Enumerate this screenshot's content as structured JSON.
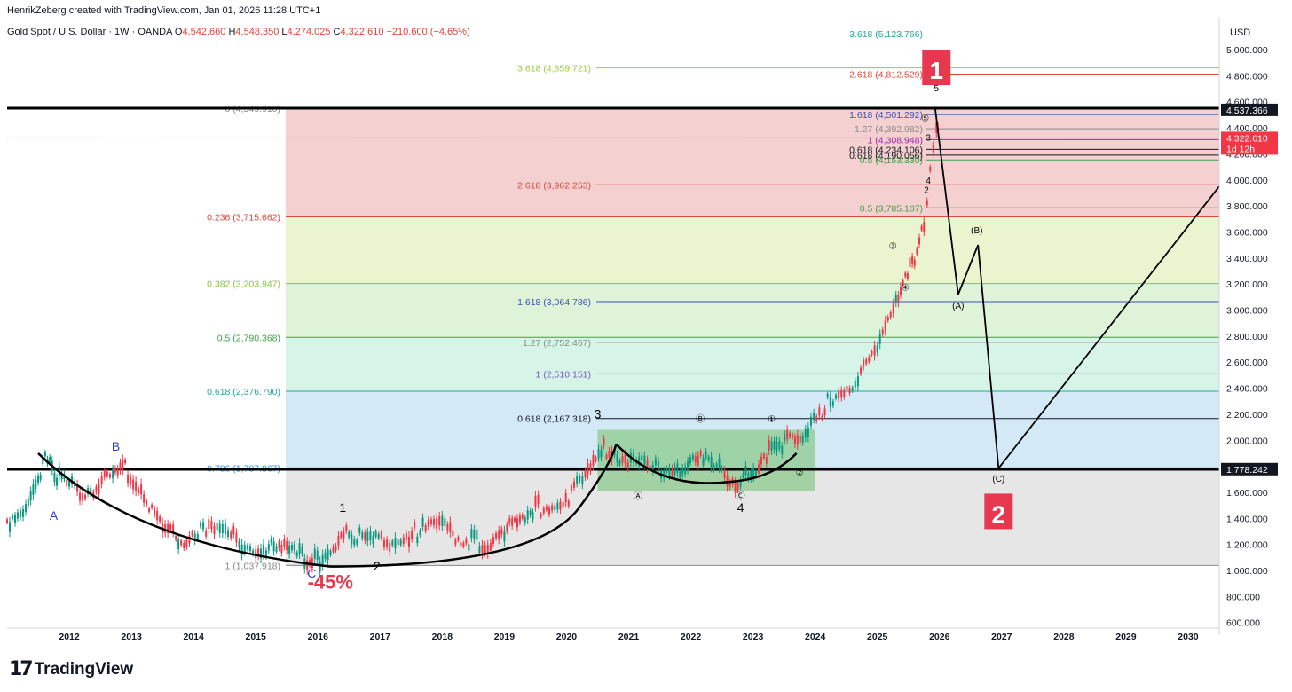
{
  "header": {
    "credit": "HenrikZeberg created with TradingView.com, Jan 01, 2026 11:28 UTC+1",
    "symbol": "Gold Spot / U.S. Dollar · 1W · OANDA",
    "o_label": "O",
    "o_value": "4,542.660",
    "h_label": "H",
    "h_value": "4,548.350",
    "l_label": "L",
    "l_value": "4,274.025",
    "c_label": "C",
    "c_value": "4,322.610",
    "change": "−210.600 (−4.65%)"
  },
  "axis": {
    "currency": "USD"
  },
  "logo": {
    "mark": "17",
    "text": "TradingView"
  },
  "chart_data": {
    "type": "line",
    "title": "",
    "xlabel": "",
    "ylabel": "USD",
    "x_ticks": [
      "2012",
      "2013",
      "2014",
      "2015",
      "2016",
      "2017",
      "2018",
      "2019",
      "2020",
      "2021",
      "2022",
      "2023",
      "2024",
      "2025",
      "2026",
      "2027",
      "2028",
      "2029",
      "2030"
    ],
    "y_ticks": [
      "600.000",
      "800.000",
      "1,000.000",
      "1,200.000",
      "1,400.000",
      "1,600.000",
      "1,800.000",
      "2,000.000",
      "2,200.000",
      "2,400.000",
      "2,600.000",
      "2,800.000",
      "3,000.000",
      "3,200.000",
      "3,400.000",
      "3,600.000",
      "3,800.000",
      "4,000.000",
      "4,200.000",
      "4,400.000",
      "4,600.000",
      "4,800.000",
      "5,000.000"
    ],
    "ylim": [
      580,
      5300
    ],
    "xlim": [
      2011.0,
      2030.5
    ],
    "series": [
      {
        "values_x": [
          2011.0,
          2011.3,
          2011.5,
          2011.65,
          2011.8,
          2012.0,
          2012.3,
          2012.7,
          2012.9,
          2013.2,
          2013.5,
          2013.8,
          2014.2,
          2014.6,
          2015.0,
          2015.5,
          2015.95,
          2016.5,
          2016.8,
          2017.2,
          2017.6,
          2018.0,
          2018.6,
          2019.0,
          2019.5,
          2019.9,
          2020.3,
          2020.6,
          2020.9,
          2021.3,
          2021.7,
          2022.2,
          2022.8,
          2023.3,
          2023.8,
          2024.2,
          2024.6,
          2025.0,
          2025.3,
          2025.45,
          2025.6,
          2025.75,
          2025.85,
          2025.95,
          2026.0
        ],
        "values_y": [
          1380,
          1500,
          1650,
          1900,
          1720,
          1650,
          1620,
          1720,
          1780,
          1600,
          1300,
          1250,
          1330,
          1250,
          1190,
          1150,
          1060,
          1300,
          1210,
          1250,
          1300,
          1330,
          1200,
          1280,
          1480,
          1520,
          1700,
          1950,
          1880,
          1780,
          1790,
          1840,
          1660,
          1960,
          1990,
          2300,
          2450,
          2650,
          3100,
          3300,
          3350,
          3700,
          4050,
          4350,
          4322.61
        ]
      }
    ],
    "fib_levels": [
      {
        "label": "0 (4,549.910)",
        "value": 4549.91
      },
      {
        "label": "0.236 (3,715.662)",
        "value": 3715.662
      },
      {
        "label": "0.382 (3,203.947)",
        "value": 3203.947
      },
      {
        "label": "0.5 (2,790.368)",
        "value": 2790.368
      },
      {
        "label": "0.618 (2,376.790)",
        "value": 2376.79
      },
      {
        "label": "0.786 (1,787.867)",
        "value": 1787.867
      },
      {
        "label": "1 (1,037.918)",
        "value": 1037.918
      }
    ],
    "extensions": [
      {
        "label": "3.618 (5,123.766)",
        "value": 5123.766
      },
      {
        "label": "3.618 (4,859.721)",
        "value": 4859.721
      },
      {
        "label": "2.618 (4,812.529)",
        "value": 4812.529
      },
      {
        "label": "1.618 (4,501.292)",
        "value": 4501.292
      },
      {
        "label": "1.27 (4,392.982)",
        "value": 4392.982
      },
      {
        "label": "1 (4,308.948)",
        "value": 4308.948
      },
      {
        "label": "0.618 (4,234.106)",
        "value": 4234.106
      },
      {
        "label": "0.618 (4,190.056)",
        "value": 4190.056
      },
      {
        "label": "0.5 (4,153.330)",
        "value": 4153.33
      },
      {
        "label": "2.618 (3,962.253)",
        "value": 3962.253
      },
      {
        "label": "0.5 (3,785.107)",
        "value": 3785.107
      },
      {
        "label": "1.618 (3,064.786)",
        "value": 3064.786
      },
      {
        "label": "1.27 (2,752.467)",
        "value": 2752.467
      },
      {
        "label": "1 (2,510.151)",
        "value": 2510.151
      },
      {
        "label": "0.618 (2,167.318)",
        "value": 2167.318
      }
    ],
    "price_tags": [
      {
        "label": "4,537.366",
        "value": 4537.366
      },
      {
        "label": "4,322.610",
        "sub": "1d 12h",
        "value": 4322.61
      },
      {
        "label": "1,778.242",
        "value": 1778.242
      }
    ],
    "forecast": [
      {
        "x": 2025.93,
        "y": 4550
      },
      {
        "x": 2026.3,
        "y": 3120
      },
      {
        "x": 2026.62,
        "y": 3500
      },
      {
        "x": 2026.95,
        "y": 1785
      },
      {
        "x": 2030.5,
        "y": 3950
      }
    ],
    "wave_labels": [
      {
        "text": "A",
        "x": 2011.75,
        "y": 1390
      },
      {
        "text": "B",
        "x": 2012.75,
        "y": 1920
      },
      {
        "text": "C",
        "x": 2015.9,
        "y": 945
      },
      {
        "text": "1",
        "x": 2016.4,
        "y": 1450
      },
      {
        "text": "2",
        "x": 2016.95,
        "y": 1000
      },
      {
        "text": "3",
        "x": 2020.5,
        "y": 2170
      },
      {
        "text": "Ⓑ",
        "x": 2022.15,
        "y": 2140
      },
      {
        "text": "①",
        "x": 2023.3,
        "y": 2140
      },
      {
        "text": "Ⓐ",
        "x": 2021.15,
        "y": 1550
      },
      {
        "text": "Ⓒ",
        "x": 2022.8,
        "y": 1550
      },
      {
        "text": "4",
        "x": 2022.8,
        "y": 1450
      },
      {
        "text": "②",
        "x": 2023.75,
        "y": 1730
      },
      {
        "text": "③",
        "x": 2025.25,
        "y": 3470
      },
      {
        "text": "④",
        "x": 2025.45,
        "y": 3150
      },
      {
        "text": "⑤",
        "x": 2025.77,
        "y": 4450
      },
      {
        "text": "3",
        "x": 2025.82,
        "y": 4300
      },
      {
        "text": "4",
        "x": 2025.82,
        "y": 3970
      },
      {
        "text": "2",
        "x": 2025.79,
        "y": 3900
      },
      {
        "text": "5",
        "x": 2025.95,
        "y": 4680
      },
      {
        "text": "(B)",
        "x": 2026.6,
        "y": 3590
      },
      {
        "text": "(A)",
        "x": 2026.3,
        "y": 3010
      },
      {
        "text": "(C)",
        "x": 2026.95,
        "y": 1680
      }
    ],
    "callouts": [
      {
        "text": "1",
        "x": 2025.95,
        "y": 4850
      },
      {
        "text": "2",
        "x": 2026.95,
        "y": 1440
      },
      {
        "text": "-45%",
        "x": 2016.2,
        "y": 860
      }
    ]
  },
  "colors": {
    "candle_up": "#089981",
    "candle_down": "#f23645",
    "accent_red": "#e8384f",
    "zone_red": "#f4d0d0",
    "zone_yellow": "#eaf4cf",
    "zone_mint": "#d6f5e8",
    "zone_blue": "#d3e9f5",
    "zone_gray": "#e6e6e6",
    "box_green": "#8cca8c"
  }
}
